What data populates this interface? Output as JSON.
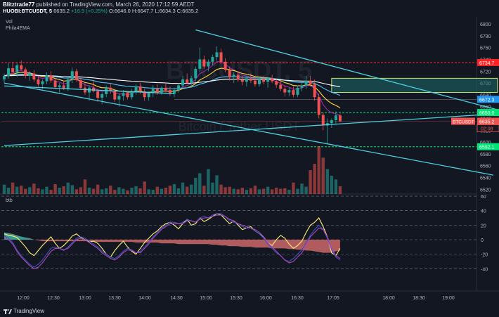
{
  "header": {
    "author": "Blitztrade77",
    "published_text": "published on TradingView.com, March 26, 2020 17:12:59 AEDT",
    "symbol": "HUOBI:BTCUSDT, 5",
    "last": "6635.2",
    "change": "+16.9 (+0.25%)",
    "ohlc": "O:6646.0  H:6647.7  L:6634.3  C:6635.2"
  },
  "panes": {
    "vol_label": "Vol",
    "ema_label": "Phila4EMA",
    "osc_label": "btb"
  },
  "watermark": {
    "symbol": "BTCUSDT, 5",
    "description": "Bitcoin / Tether USDT"
  },
  "footer": {
    "brand": "TradingView"
  },
  "colors": {
    "bg": "#131722",
    "up": "#26a69a",
    "down": "#ef5350",
    "trend": "#4dd0e1",
    "green_level": "#00e676",
    "red_level": "#ff2222"
  },
  "chart_data": {
    "type": "candlestick",
    "price_axis": {
      "ticks": [
        6800,
        6780,
        6760,
        6740,
        6720,
        6700,
        6680,
        6660,
        6640,
        6620,
        6600,
        6580,
        6560,
        6540,
        6520
      ],
      "range": [
        6512,
        6812
      ]
    },
    "time_axis": {
      "labels": [
        "12:00",
        "12:30",
        "13:00",
        "13:30",
        "14:00",
        "14:30",
        "15:00",
        "15:30",
        "16:00",
        "16:30",
        "17:05",
        "18:00",
        "18:30",
        "19:00"
      ]
    },
    "price_labels": [
      {
        "text": "6734.7",
        "value": 6734.7,
        "color": "#ff2222"
      },
      {
        "text": "6672.3",
        "value": 6672.3,
        "color": "#2196f3"
      },
      {
        "text": "6650.0",
        "value": 6650.0,
        "color": "#00e676"
      },
      {
        "text": "6635.2",
        "value": 6635.2,
        "color": "#ef5350"
      },
      {
        "text": "6592.1",
        "value": 6592.1,
        "color": "#00e676"
      }
    ],
    "countdown": "02:08",
    "symbol_tag": "BTCUSDT",
    "candles": [
      {
        "o": 6706,
        "h": 6716,
        "l": 6700,
        "c": 6712
      },
      {
        "o": 6712,
        "h": 6734,
        "l": 6707,
        "c": 6725
      },
      {
        "o": 6725,
        "h": 6736,
        "l": 6718,
        "c": 6718
      },
      {
        "o": 6718,
        "h": 6734,
        "l": 6710,
        "c": 6730
      },
      {
        "o": 6730,
        "h": 6738,
        "l": 6722,
        "c": 6723
      },
      {
        "o": 6723,
        "h": 6726,
        "l": 6708,
        "c": 6712
      },
      {
        "o": 6712,
        "h": 6720,
        "l": 6704,
        "c": 6716
      },
      {
        "o": 6716,
        "h": 6722,
        "l": 6702,
        "c": 6706
      },
      {
        "o": 6706,
        "h": 6712,
        "l": 6694,
        "c": 6698
      },
      {
        "o": 6698,
        "h": 6706,
        "l": 6690,
        "c": 6703
      },
      {
        "o": 6703,
        "h": 6718,
        "l": 6698,
        "c": 6713
      },
      {
        "o": 6713,
        "h": 6720,
        "l": 6700,
        "c": 6704
      },
      {
        "o": 6704,
        "h": 6708,
        "l": 6690,
        "c": 6693
      },
      {
        "o": 6693,
        "h": 6700,
        "l": 6684,
        "c": 6696
      },
      {
        "o": 6696,
        "h": 6704,
        "l": 6688,
        "c": 6690
      },
      {
        "o": 6690,
        "h": 6712,
        "l": 6686,
        "c": 6706
      },
      {
        "o": 6706,
        "h": 6726,
        "l": 6700,
        "c": 6720
      },
      {
        "o": 6720,
        "h": 6724,
        "l": 6702,
        "c": 6705
      },
      {
        "o": 6705,
        "h": 6710,
        "l": 6688,
        "c": 6692
      },
      {
        "o": 6692,
        "h": 6700,
        "l": 6680,
        "c": 6684
      },
      {
        "o": 6684,
        "h": 6696,
        "l": 6670,
        "c": 6692
      },
      {
        "o": 6692,
        "h": 6704,
        "l": 6684,
        "c": 6686
      },
      {
        "o": 6686,
        "h": 6690,
        "l": 6668,
        "c": 6675
      },
      {
        "o": 6675,
        "h": 6684,
        "l": 6664,
        "c": 6681
      },
      {
        "o": 6681,
        "h": 6696,
        "l": 6676,
        "c": 6692
      },
      {
        "o": 6692,
        "h": 6700,
        "l": 6682,
        "c": 6686
      },
      {
        "o": 6686,
        "h": 6690,
        "l": 6668,
        "c": 6672
      },
      {
        "o": 6672,
        "h": 6682,
        "l": 6660,
        "c": 6678
      },
      {
        "o": 6678,
        "h": 6688,
        "l": 6670,
        "c": 6683
      },
      {
        "o": 6683,
        "h": 6686,
        "l": 6672,
        "c": 6676
      },
      {
        "o": 6676,
        "h": 6690,
        "l": 6672,
        "c": 6686
      },
      {
        "o": 6686,
        "h": 6698,
        "l": 6680,
        "c": 6694
      },
      {
        "o": 6694,
        "h": 6700,
        "l": 6682,
        "c": 6686
      },
      {
        "o": 6686,
        "h": 6690,
        "l": 6670,
        "c": 6676
      },
      {
        "o": 6676,
        "h": 6686,
        "l": 6670,
        "c": 6683
      },
      {
        "o": 6683,
        "h": 6696,
        "l": 6676,
        "c": 6690
      },
      {
        "o": 6690,
        "h": 6698,
        "l": 6680,
        "c": 6684
      },
      {
        "o": 6684,
        "h": 6694,
        "l": 6680,
        "c": 6692
      },
      {
        "o": 6692,
        "h": 6700,
        "l": 6684,
        "c": 6688
      },
      {
        "o": 6688,
        "h": 6694,
        "l": 6678,
        "c": 6682
      },
      {
        "o": 6682,
        "h": 6692,
        "l": 6676,
        "c": 6688
      },
      {
        "o": 6688,
        "h": 6700,
        "l": 6684,
        "c": 6696
      },
      {
        "o": 6696,
        "h": 6712,
        "l": 6690,
        "c": 6706
      },
      {
        "o": 6706,
        "h": 6716,
        "l": 6698,
        "c": 6700
      },
      {
        "o": 6700,
        "h": 6712,
        "l": 6694,
        "c": 6708
      },
      {
        "o": 6708,
        "h": 6728,
        "l": 6702,
        "c": 6724
      },
      {
        "o": 6724,
        "h": 6760,
        "l": 6718,
        "c": 6740
      },
      {
        "o": 6740,
        "h": 6746,
        "l": 6724,
        "c": 6728
      },
      {
        "o": 6728,
        "h": 6740,
        "l": 6720,
        "c": 6736
      },
      {
        "o": 6736,
        "h": 6748,
        "l": 6730,
        "c": 6744
      },
      {
        "o": 6744,
        "h": 6762,
        "l": 6738,
        "c": 6752
      },
      {
        "o": 6752,
        "h": 6758,
        "l": 6732,
        "c": 6736
      },
      {
        "o": 6736,
        "h": 6742,
        "l": 6718,
        "c": 6722
      },
      {
        "o": 6722,
        "h": 6728,
        "l": 6704,
        "c": 6710
      },
      {
        "o": 6710,
        "h": 6718,
        "l": 6700,
        "c": 6714
      },
      {
        "o": 6714,
        "h": 6720,
        "l": 6702,
        "c": 6706
      },
      {
        "o": 6706,
        "h": 6712,
        "l": 6696,
        "c": 6702
      },
      {
        "o": 6702,
        "h": 6712,
        "l": 6694,
        "c": 6708
      },
      {
        "o": 6708,
        "h": 6716,
        "l": 6700,
        "c": 6704
      },
      {
        "o": 6704,
        "h": 6710,
        "l": 6694,
        "c": 6698
      },
      {
        "o": 6698,
        "h": 6710,
        "l": 6694,
        "c": 6706
      },
      {
        "o": 6706,
        "h": 6712,
        "l": 6698,
        "c": 6702
      },
      {
        "o": 6702,
        "h": 6710,
        "l": 6692,
        "c": 6708
      },
      {
        "o": 6708,
        "h": 6714,
        "l": 6700,
        "c": 6703
      },
      {
        "o": 6703,
        "h": 6708,
        "l": 6692,
        "c": 6697
      },
      {
        "o": 6697,
        "h": 6704,
        "l": 6686,
        "c": 6690
      },
      {
        "o": 6690,
        "h": 6696,
        "l": 6678,
        "c": 6684
      },
      {
        "o": 6684,
        "h": 6692,
        "l": 6678,
        "c": 6688
      },
      {
        "o": 6688,
        "h": 6694,
        "l": 6676,
        "c": 6680
      },
      {
        "o": 6680,
        "h": 6696,
        "l": 6676,
        "c": 6692
      },
      {
        "o": 6692,
        "h": 6700,
        "l": 6686,
        "c": 6696
      },
      {
        "o": 6696,
        "h": 6712,
        "l": 6690,
        "c": 6704
      },
      {
        "o": 6704,
        "h": 6712,
        "l": 6694,
        "c": 6698
      },
      {
        "o": 6698,
        "h": 6706,
        "l": 6670,
        "c": 6676
      },
      {
        "o": 6676,
        "h": 6682,
        "l": 6640,
        "c": 6646
      },
      {
        "o": 6646,
        "h": 6650,
        "l": 6620,
        "c": 6628
      },
      {
        "o": 6628,
        "h": 6640,
        "l": 6598,
        "c": 6632
      },
      {
        "o": 6632,
        "h": 6640,
        "l": 6624,
        "c": 6637
      },
      {
        "o": 6637,
        "h": 6652,
        "l": 6630,
        "c": 6645
      },
      {
        "o": 6645,
        "h": 6648,
        "l": 6634,
        "c": 6635
      }
    ],
    "volume": [
      18,
      12,
      22,
      14,
      16,
      10,
      13,
      20,
      11,
      9,
      14,
      8,
      19,
      12,
      15,
      22,
      17,
      9,
      13,
      28,
      12,
      10,
      18,
      9,
      11,
      16,
      8,
      13,
      10,
      7,
      12,
      15,
      11,
      24,
      9,
      8,
      14,
      10,
      12,
      16,
      19,
      11,
      22,
      14,
      18,
      31,
      40,
      16,
      48,
      22,
      36,
      18,
      13,
      14,
      10,
      9,
      12,
      8,
      11,
      16,
      9,
      10,
      14,
      9,
      12,
      10,
      11,
      8,
      22,
      10,
      20,
      14,
      46,
      58,
      92,
      70,
      48,
      35,
      28,
      15
    ],
    "osc": {
      "ticks": [
        60,
        40,
        20,
        0,
        -20,
        -40
      ],
      "range": [
        -63,
        63
      ],
      "area": [
        10,
        9,
        8,
        6,
        4,
        3,
        2,
        0,
        -1,
        -2,
        -2,
        -2,
        -2,
        -2,
        -2,
        -2,
        -2,
        -2,
        -2,
        -2,
        -2,
        -3,
        -3,
        -3,
        -3,
        -3,
        -3,
        -3,
        -3,
        -3,
        -3,
        -4,
        -4,
        -4,
        -4,
        -4,
        -4,
        -5,
        -5,
        -5,
        -5,
        -6,
        -6,
        -6,
        -6,
        -6,
        -6,
        -6,
        -6,
        -7,
        -7,
        -8,
        -8,
        -9,
        -9,
        -9,
        -10,
        -10,
        -10,
        -11,
        -11,
        -11,
        -11,
        -12,
        -12,
        -12,
        -12,
        -13,
        -13,
        -14,
        -14,
        -15,
        -15,
        -16,
        -17,
        -18,
        -18,
        -18,
        -16,
        -15
      ],
      "yellow": [
        8,
        6,
        5,
        3,
        -3,
        -10,
        -18,
        -22,
        -15,
        -8,
        -2,
        4,
        -5,
        -12,
        -8,
        -2,
        5,
        8,
        3,
        0,
        -3,
        -2,
        -5,
        -12,
        -20,
        -24,
        -15,
        -8,
        -2,
        -10,
        -16,
        -20,
        -12,
        -4,
        2,
        8,
        12,
        18,
        22,
        24,
        20,
        15,
        22,
        28,
        20,
        22,
        30,
        25,
        28,
        32,
        36,
        34,
        28,
        22,
        26,
        20,
        14,
        16,
        18,
        12,
        8,
        4,
        -4,
        -8,
        0,
        6,
        2,
        -6,
        -12,
        -8,
        -2,
        10,
        20,
        24,
        30,
        18,
        4,
        -18,
        -22,
        -12
      ],
      "blue": [
        5,
        2,
        -4,
        -14,
        -22,
        -28,
        -34,
        -38,
        -34,
        -28,
        -20,
        -12,
        -10,
        -12,
        -15,
        -10,
        -4,
        2,
        4,
        2,
        -2,
        -6,
        -10,
        -16,
        -20,
        -24,
        -26,
        -22,
        -16,
        -12,
        -14,
        -18,
        -16,
        -10,
        -4,
        4,
        10,
        16,
        20,
        24,
        24,
        22,
        24,
        28,
        26,
        24,
        30,
        32,
        30,
        34,
        36,
        36,
        32,
        26,
        24,
        22,
        18,
        16,
        16,
        12,
        8,
        2,
        -6,
        -12,
        -18,
        -22,
        -28,
        -30,
        -26,
        -20,
        -14,
        -4,
        6,
        14,
        20,
        14,
        2,
        -14,
        -24,
        -28
      ],
      "purple": [
        3,
        0,
        -6,
        -16,
        -24,
        -30,
        -36,
        -40,
        -38,
        -32,
        -24,
        -16,
        -12,
        -12,
        -14,
        -12,
        -6,
        0,
        2,
        0,
        -4,
        -8,
        -12,
        -18,
        -22,
        -26,
        -28,
        -24,
        -18,
        -14,
        -15,
        -18,
        -18,
        -12,
        -6,
        2,
        8,
        14,
        18,
        22,
        22,
        22,
        22,
        26,
        26,
        24,
        28,
        30,
        30,
        32,
        34,
        34,
        32,
        28,
        26,
        22,
        20,
        18,
        16,
        14,
        10,
        4,
        -4,
        -10,
        -16,
        -22,
        -28,
        -32,
        -30,
        -24,
        -18,
        -8,
        4,
        10,
        16,
        14,
        4,
        -12,
        -22,
        -26
      ]
    },
    "overlays": [
      {
        "name": "trend-upper",
        "from": [
          45,
          6790
        ],
        "to": [
          130,
          6628
        ]
      },
      {
        "name": "trend-lower-left",
        "from": [
          0,
          6700
        ],
        "to": [
          115,
          6544
        ]
      },
      {
        "name": "trend-rising",
        "from": [
          0,
          6594
        ],
        "to": [
          142,
          6660
        ]
      },
      {
        "name": "trend-upper-left",
        "from": [
          0,
          6695
        ],
        "to": [
          40,
          6682
        ]
      }
    ],
    "zone": {
      "t_from": 77,
      "t_to": 116,
      "p_from": 6684,
      "p_to": 6708
    },
    "levels": [
      {
        "name": "red-resistance",
        "value": 6734.7,
        "color": "#ff2222"
      },
      {
        "name": "green-support-upper",
        "value": 6650.0,
        "color": "#00e676"
      },
      {
        "name": "green-support-lower",
        "value": 6592.1,
        "color": "#00e676"
      },
      {
        "name": "last-price",
        "value": 6635.2,
        "color": "#ef5350"
      }
    ]
  }
}
